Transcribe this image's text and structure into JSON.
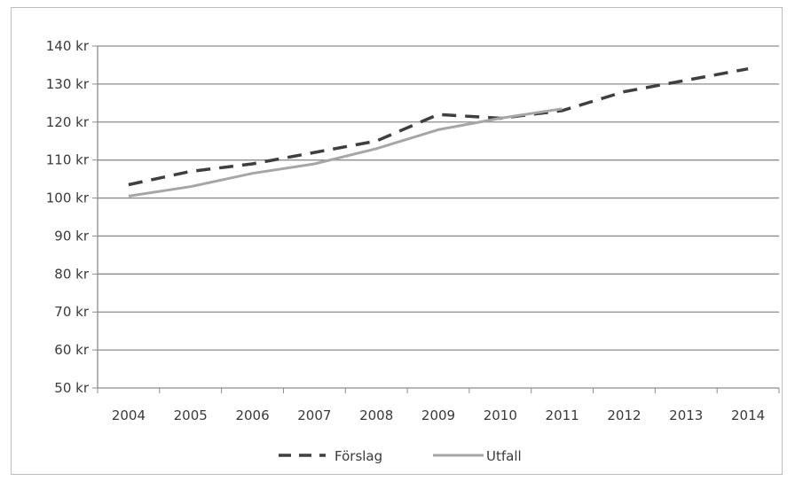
{
  "chart_data": {
    "type": "line",
    "x": [
      "2004",
      "2005",
      "2006",
      "2007",
      "2008",
      "2009",
      "2010",
      "2011",
      "2012",
      "2013",
      "2014"
    ],
    "ylim": [
      50,
      140
    ],
    "y_ticks": [
      50,
      60,
      70,
      80,
      90,
      100,
      110,
      120,
      130,
      140
    ],
    "y_tick_suffix": " kr",
    "grid": "horizontal",
    "legend_position": "bottom",
    "series": [
      {
        "name": "Förslag",
        "style": "dashed",
        "color": "#3f3f3f",
        "values": [
          103.5,
          107,
          109,
          112,
          115,
          122,
          121,
          123,
          128,
          131,
          134
        ]
      },
      {
        "name": "Utfall",
        "style": "solid",
        "color": "#a6a6a6",
        "values": [
          100.5,
          103,
          106.5,
          109,
          113,
          118,
          121,
          123.5,
          null,
          null,
          null
        ]
      }
    ]
  }
}
